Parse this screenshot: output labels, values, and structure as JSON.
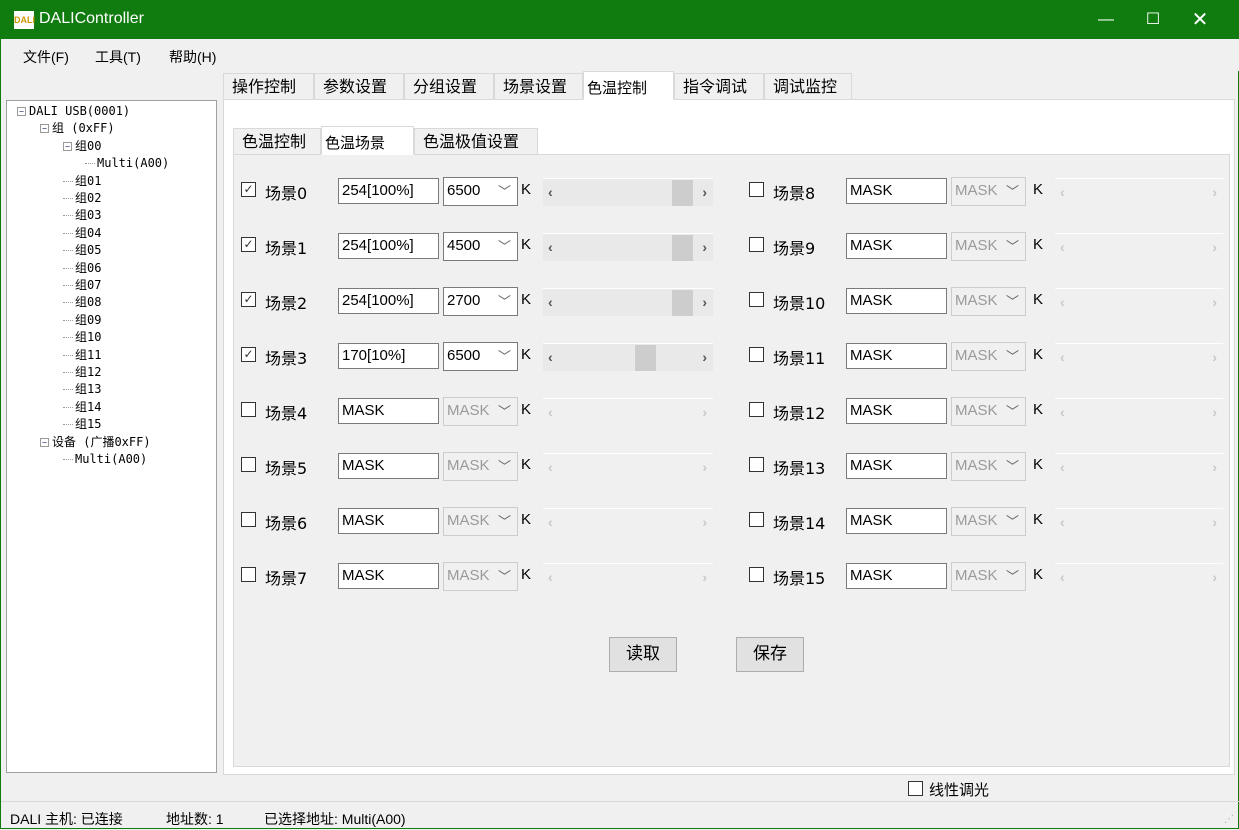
{
  "window": {
    "title": "DALIController",
    "logo_text": "DALI",
    "controls": [
      "minimize",
      "maximize",
      "close"
    ]
  },
  "menu": [
    {
      "label": "文件(F)"
    },
    {
      "label": "工具(T)"
    },
    {
      "label": "帮助(H)"
    }
  ],
  "tabs": [
    {
      "label": "操作控制"
    },
    {
      "label": "参数设置"
    },
    {
      "label": "分组设置"
    },
    {
      "label": "场景设置"
    },
    {
      "label": "色温控制",
      "selected": true
    },
    {
      "label": "指令调试"
    },
    {
      "label": "调试监控"
    }
  ],
  "subtabs": [
    {
      "label": "色温控制"
    },
    {
      "label": "色温场景",
      "selected": true
    },
    {
      "label": "色温极值设置"
    }
  ],
  "tree": [
    {
      "label": "DALI USB(0001)",
      "level": 0,
      "expander": "minus"
    },
    {
      "label": "组 (0xFF)",
      "level": 1,
      "expander": "minus"
    },
    {
      "label": "组00",
      "level": 2,
      "expander": "minus"
    },
    {
      "label": "Multi(A00)",
      "level": 3
    },
    {
      "label": "组01",
      "level": 2
    },
    {
      "label": "组02",
      "level": 2
    },
    {
      "label": "组03",
      "level": 2
    },
    {
      "label": "组04",
      "level": 2
    },
    {
      "label": "组05",
      "level": 2
    },
    {
      "label": "组06",
      "level": 2
    },
    {
      "label": "组07",
      "level": 2
    },
    {
      "label": "组08",
      "level": 2
    },
    {
      "label": "组09",
      "level": 2
    },
    {
      "label": "组10",
      "level": 2
    },
    {
      "label": "组11",
      "level": 2
    },
    {
      "label": "组12",
      "level": 2
    },
    {
      "label": "组13",
      "level": 2
    },
    {
      "label": "组14",
      "level": 2
    },
    {
      "label": "组15",
      "level": 2
    },
    {
      "label": "设备 (广播0xFF)",
      "level": 1,
      "expander": "minus"
    },
    {
      "label": "Multi(A00)",
      "level": 2
    }
  ],
  "scenes": [
    {
      "label": "场景0",
      "checked": true,
      "level": "254[100%]",
      "temp": "6500",
      "unit": "K",
      "enabled": true,
      "slider_value": 254
    },
    {
      "label": "场景1",
      "checked": true,
      "level": "254[100%]",
      "temp": "4500",
      "unit": "K",
      "enabled": true,
      "slider_value": 254
    },
    {
      "label": "场景2",
      "checked": true,
      "level": "254[100%]",
      "temp": "2700",
      "unit": "K",
      "enabled": true,
      "slider_value": 254
    },
    {
      "label": "场景3",
      "checked": true,
      "level": "170[10%]",
      "temp": "6500",
      "unit": "K",
      "enabled": true,
      "slider_value": 170
    },
    {
      "label": "场景4",
      "checked": false,
      "level": "MASK",
      "temp": "MASK",
      "unit": "K",
      "enabled": false
    },
    {
      "label": "场景5",
      "checked": false,
      "level": "MASK",
      "temp": "MASK",
      "unit": "K",
      "enabled": false
    },
    {
      "label": "场景6",
      "checked": false,
      "level": "MASK",
      "temp": "MASK",
      "unit": "K",
      "enabled": false
    },
    {
      "label": "场景7",
      "checked": false,
      "level": "MASK",
      "temp": "MASK",
      "unit": "K",
      "enabled": false
    },
    {
      "label": "场景8",
      "checked": false,
      "level": "MASK",
      "temp": "MASK",
      "unit": "K",
      "enabled": false
    },
    {
      "label": "场景9",
      "checked": false,
      "level": "MASK",
      "temp": "MASK",
      "unit": "K",
      "enabled": false
    },
    {
      "label": "场景10",
      "checked": false,
      "level": "MASK",
      "temp": "MASK",
      "unit": "K",
      "enabled": false
    },
    {
      "label": "场景11",
      "checked": false,
      "level": "MASK",
      "temp": "MASK",
      "unit": "K",
      "enabled": false
    },
    {
      "label": "场景12",
      "checked": false,
      "level": "MASK",
      "temp": "MASK",
      "unit": "K",
      "enabled": false
    },
    {
      "label": "场景13",
      "checked": false,
      "level": "MASK",
      "temp": "MASK",
      "unit": "K",
      "enabled": false
    },
    {
      "label": "场景14",
      "checked": false,
      "level": "MASK",
      "temp": "MASK",
      "unit": "K",
      "enabled": false
    },
    {
      "label": "场景15",
      "checked": false,
      "level": "MASK",
      "temp": "MASK",
      "unit": "K",
      "enabled": false
    }
  ],
  "slider_range": [
    0,
    254
  ],
  "buttons": {
    "read": "读取",
    "save": "保存"
  },
  "linear_dimming": {
    "label": "线性调光",
    "checked": false
  },
  "status": {
    "host": "DALI 主机: 已连接",
    "addr_count": "地址数: 1",
    "selected": "已选择地址: Multi(A00)"
  },
  "colors": {
    "titlebar": "#107c10"
  }
}
